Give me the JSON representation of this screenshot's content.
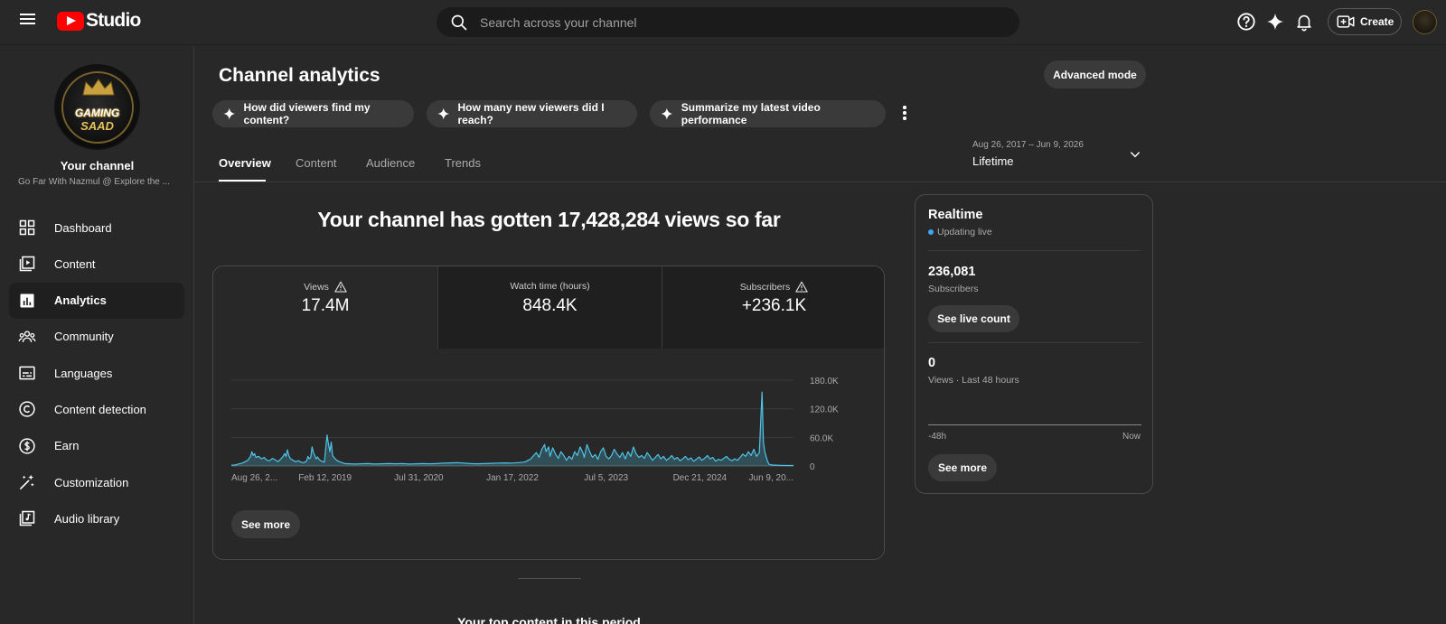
{
  "header": {
    "logo_text": "Studio",
    "search_placeholder": "Search across your channel",
    "create_label": "Create"
  },
  "sidebar": {
    "avatar_text_line1": "GAMING",
    "avatar_text_line2": "SAAD",
    "your_channel_label": "Your channel",
    "channel_name": "Go Far With Nazmul @ Explore the ...",
    "items": [
      {
        "label": "Dashboard",
        "icon": "dashboard-icon"
      },
      {
        "label": "Content",
        "icon": "content-icon"
      },
      {
        "label": "Analytics",
        "icon": "analytics-icon",
        "active": true
      },
      {
        "label": "Community",
        "icon": "community-icon"
      },
      {
        "label": "Languages",
        "icon": "languages-icon"
      },
      {
        "label": "Content detection",
        "icon": "content-detection-icon"
      },
      {
        "label": "Earn",
        "icon": "earn-icon"
      },
      {
        "label": "Customization",
        "icon": "customization-icon"
      },
      {
        "label": "Audio library",
        "icon": "audio-library-icon"
      }
    ]
  },
  "main": {
    "title": "Channel analytics",
    "advanced_mode_label": "Advanced mode",
    "chips": [
      "How did viewers find my content?",
      "How many new viewers did I reach?",
      "Summarize my latest video performance"
    ],
    "tabs": [
      "Overview",
      "Content",
      "Audience",
      "Trends"
    ],
    "active_tab": "Overview",
    "date_range": "Aug 26, 2017 – Jun 9, 2026",
    "date_label": "Lifetime",
    "headline": "Your channel has gotten 17,428,284 views so far",
    "metrics": [
      {
        "label": "Views",
        "value": "17.4M",
        "warning": true
      },
      {
        "label": "Watch time (hours)",
        "value": "848.4K",
        "warning": false
      },
      {
        "label": "Subscribers",
        "value": "+236.1K",
        "warning": true
      }
    ],
    "see_more_label": "See more",
    "top_content_title": "Your top content in this period"
  },
  "chart_data": {
    "type": "line",
    "metric": "Views",
    "x_tick_labels": [
      "Aug 26, 2...",
      "Feb 12, 2019",
      "Jul 31, 2020",
      "Jan 17, 2022",
      "Jul 5, 2023",
      "Dec 21, 2024",
      "Jun 9, 20..."
    ],
    "y_tick_labels": [
      "0",
      "60.0K",
      "120.0K",
      "180.0K"
    ],
    "ylim": [
      0,
      180000
    ],
    "x_range": [
      "2017-08-26",
      "2026-06-09"
    ],
    "grid": true,
    "color": "#4fc3e8",
    "series": [
      {
        "values": [
          [
            0,
            1500
          ],
          [
            3,
            2000
          ],
          [
            5,
            4000
          ],
          [
            8,
            6000
          ],
          [
            10,
            9000
          ],
          [
            12,
            12000
          ],
          [
            14,
            20000
          ],
          [
            15,
            30000
          ],
          [
            16,
            22000
          ],
          [
            17,
            26000
          ],
          [
            18,
            18000
          ],
          [
            20,
            20000
          ],
          [
            22,
            15000
          ],
          [
            24,
            18000
          ],
          [
            26,
            12000
          ],
          [
            28,
            11000
          ],
          [
            30,
            16000
          ],
          [
            32,
            13000
          ],
          [
            34,
            9000
          ],
          [
            36,
            14000
          ],
          [
            38,
            21000
          ],
          [
            39,
            26000
          ],
          [
            40,
            20000
          ],
          [
            41,
            34000
          ],
          [
            42,
            22000
          ],
          [
            43,
            16000
          ],
          [
            45,
            12000
          ],
          [
            47,
            9000
          ],
          [
            49,
            11000
          ],
          [
            51,
            8000
          ],
          [
            53,
            7000
          ],
          [
            55,
            10000
          ],
          [
            56,
            20000
          ],
          [
            57,
            15000
          ],
          [
            58,
            18000
          ],
          [
            59,
            40000
          ],
          [
            60,
            28000
          ],
          [
            61,
            22000
          ],
          [
            62,
            15000
          ],
          [
            63,
            19000
          ],
          [
            64,
            14000
          ],
          [
            66,
            10000
          ],
          [
            68,
            8000
          ],
          [
            70,
            65000
          ],
          [
            71,
            45000
          ],
          [
            72,
            30000
          ],
          [
            73,
            50000
          ],
          [
            74,
            22000
          ],
          [
            75,
            18000
          ],
          [
            77,
            12000
          ],
          [
            79,
            9000
          ],
          [
            81,
            7000
          ],
          [
            83,
            5000
          ],
          [
            86,
            4500
          ],
          [
            90,
            4000
          ],
          [
            95,
            4500
          ],
          [
            100,
            5000
          ],
          [
            105,
            4000
          ],
          [
            110,
            4500
          ],
          [
            115,
            5000
          ],
          [
            120,
            4500
          ],
          [
            125,
            5000
          ],
          [
            130,
            4000
          ],
          [
            135,
            4500
          ],
          [
            140,
            5000
          ],
          [
            145,
            4500
          ],
          [
            150,
            5000
          ],
          [
            155,
            6000
          ],
          [
            160,
            6500
          ],
          [
            165,
            7000
          ],
          [
            170,
            6000
          ],
          [
            175,
            5000
          ],
          [
            180,
            4500
          ],
          [
            185,
            5000
          ],
          [
            190,
            5500
          ],
          [
            195,
            6000
          ],
          [
            200,
            6500
          ],
          [
            205,
            6000
          ],
          [
            210,
            7000
          ],
          [
            213,
            8000
          ],
          [
            215,
            9000
          ],
          [
            217,
            12000
          ],
          [
            219,
            15000
          ],
          [
            221,
            22000
          ],
          [
            223,
            28000
          ],
          [
            225,
            18000
          ],
          [
            227,
            35000
          ],
          [
            229,
            45000
          ],
          [
            230,
            30000
          ],
          [
            232,
            40000
          ],
          [
            233,
            20000
          ],
          [
            235,
            38000
          ],
          [
            237,
            25000
          ],
          [
            239,
            16000
          ],
          [
            241,
            30000
          ],
          [
            243,
            22000
          ],
          [
            245,
            12000
          ],
          [
            247,
            20000
          ],
          [
            249,
            14000
          ],
          [
            251,
            30000
          ],
          [
            253,
            22000
          ],
          [
            255,
            40000
          ],
          [
            257,
            28000
          ],
          [
            258,
            18000
          ],
          [
            260,
            45000
          ],
          [
            262,
            30000
          ],
          [
            264,
            18000
          ],
          [
            266,
            24000
          ],
          [
            268,
            14000
          ],
          [
            270,
            30000
          ],
          [
            272,
            38000
          ],
          [
            274,
            20000
          ],
          [
            276,
            15000
          ],
          [
            278,
            22000
          ],
          [
            280,
            35000
          ],
          [
            282,
            25000
          ],
          [
            284,
            18000
          ],
          [
            286,
            28000
          ],
          [
            288,
            15000
          ],
          [
            290,
            30000
          ],
          [
            292,
            20000
          ],
          [
            294,
            40000
          ],
          [
            296,
            25000
          ],
          [
            298,
            18000
          ],
          [
            300,
            22000
          ],
          [
            302,
            16000
          ],
          [
            304,
            28000
          ],
          [
            306,
            20000
          ],
          [
            308,
            12000
          ],
          [
            310,
            18000
          ],
          [
            312,
            24000
          ],
          [
            314,
            15000
          ],
          [
            316,
            20000
          ],
          [
            318,
            12000
          ],
          [
            320,
            16000
          ],
          [
            322,
            22000
          ],
          [
            324,
            14000
          ],
          [
            326,
            18000
          ],
          [
            328,
            11000
          ],
          [
            330,
            15000
          ],
          [
            332,
            20000
          ],
          [
            334,
            13000
          ],
          [
            336,
            17000
          ],
          [
            338,
            10000
          ],
          [
            340,
            14000
          ],
          [
            342,
            19000
          ],
          [
            344,
            12000
          ],
          [
            346,
            16000
          ],
          [
            348,
            22000
          ],
          [
            350,
            15000
          ],
          [
            352,
            18000
          ],
          [
            354,
            10000
          ],
          [
            356,
            14000
          ],
          [
            358,
            12000
          ],
          [
            360,
            16000
          ],
          [
            362,
            20000
          ],
          [
            364,
            14000
          ],
          [
            366,
            11000
          ],
          [
            368,
            15000
          ],
          [
            370,
            12000
          ],
          [
            372,
            18000
          ],
          [
            374,
            25000
          ],
          [
            376,
            20000
          ],
          [
            378,
            30000
          ],
          [
            380,
            22000
          ],
          [
            382,
            35000
          ],
          [
            384,
            20000
          ],
          [
            386,
            28000
          ],
          [
            388,
            155000
          ],
          [
            389,
            50000
          ],
          [
            390,
            30000
          ],
          [
            391,
            20000
          ],
          [
            392,
            10000
          ],
          [
            393,
            4000
          ],
          [
            395,
            2000
          ],
          [
            400,
            1500
          ],
          [
            405,
            1000
          ],
          [
            411,
            1000
          ]
        ]
      }
    ]
  },
  "realtime": {
    "title": "Realtime",
    "status": "Updating live",
    "subscribers_value": "236,081",
    "subscribers_label": "Subscribers",
    "see_live_count_label": "See live count",
    "views_value": "0",
    "views_label": "Views · Last 48 hours",
    "axis_start": "-48h",
    "axis_end": "Now",
    "see_more_label": "See more"
  }
}
